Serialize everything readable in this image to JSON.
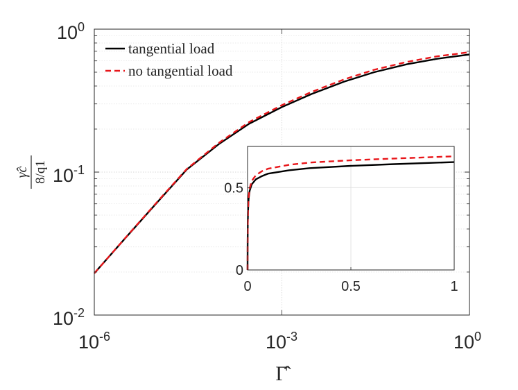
{
  "chart_data": [
    {
      "type": "line",
      "id": "main",
      "xscale": "log",
      "yscale": "log",
      "xlim": [
        1e-06,
        1
      ],
      "ylim": [
        0.01,
        1
      ],
      "xticks": [
        {
          "base": "10",
          "exp": "-6"
        },
        {
          "base": "10",
          "exp": "-3"
        },
        {
          "base": "10",
          "exp": "0"
        }
      ],
      "yticks": [
        {
          "base": "10",
          "exp": "-2"
        },
        {
          "base": "10",
          "exp": "-1"
        },
        {
          "base": "10",
          "exp": "0"
        }
      ],
      "xlabel": "Γ̂",
      "ylabel": {
        "top": "γ̂c",
        "bottom": "8/q1"
      },
      "grid": true,
      "legend_position": "top-left",
      "series": [
        {
          "name": "tangential load",
          "color": "#000000",
          "dash": "solid",
          "x": [
            1e-06,
            3e-06,
            1e-05,
            3e-05,
            0.0001,
            0.0003,
            0.001,
            0.003,
            0.01,
            0.03,
            0.1,
            0.3,
            1
          ],
          "y": [
            0.0196,
            0.0338,
            0.061,
            0.104,
            0.158,
            0.218,
            0.285,
            0.352,
            0.43,
            0.5,
            0.568,
            0.62,
            0.665
          ]
        },
        {
          "name": "no tangential load",
          "color": "#e8161a",
          "dash": "dashed",
          "x": [
            1e-06,
            3e-06,
            1e-05,
            3e-05,
            0.0001,
            0.0003,
            0.001,
            0.003,
            0.01,
            0.03,
            0.1,
            0.3,
            1
          ],
          "y": [
            0.0196,
            0.0339,
            0.0615,
            0.105,
            0.161,
            0.224,
            0.294,
            0.364,
            0.446,
            0.52,
            0.59,
            0.645,
            0.69
          ]
        }
      ]
    },
    {
      "type": "line",
      "id": "inset",
      "xscale": "linear",
      "yscale": "linear",
      "xlim": [
        0,
        1
      ],
      "ylim": [
        0,
        0.75
      ],
      "xticks": [
        "0",
        "0.5",
        "1"
      ],
      "xtick_values": [
        0,
        0.5,
        1
      ],
      "yticks": [
        "0",
        "0.5"
      ],
      "ytick_values": [
        0,
        0.5
      ],
      "grid": true,
      "series": [
        {
          "name": "tangential load",
          "color": "#000000",
          "dash": "solid",
          "x": [
            0,
            0.0003,
            0.001,
            0.002,
            0.005,
            0.01,
            0.02,
            0.04,
            0.07,
            0.1,
            0.2,
            0.3,
            0.5,
            0.7,
            1
          ],
          "y": [
            0,
            0.15,
            0.28,
            0.35,
            0.43,
            0.48,
            0.52,
            0.55,
            0.57,
            0.585,
            0.605,
            0.618,
            0.632,
            0.642,
            0.655
          ]
        },
        {
          "name": "no tangential load",
          "color": "#e8161a",
          "dash": "dashed",
          "x": [
            0,
            0.0003,
            0.001,
            0.002,
            0.005,
            0.01,
            0.02,
            0.04,
            0.07,
            0.1,
            0.2,
            0.3,
            0.5,
            0.7,
            1
          ],
          "y": [
            0,
            0.15,
            0.28,
            0.355,
            0.44,
            0.495,
            0.54,
            0.575,
            0.6,
            0.615,
            0.638,
            0.652,
            0.666,
            0.676,
            0.69
          ]
        }
      ]
    }
  ]
}
